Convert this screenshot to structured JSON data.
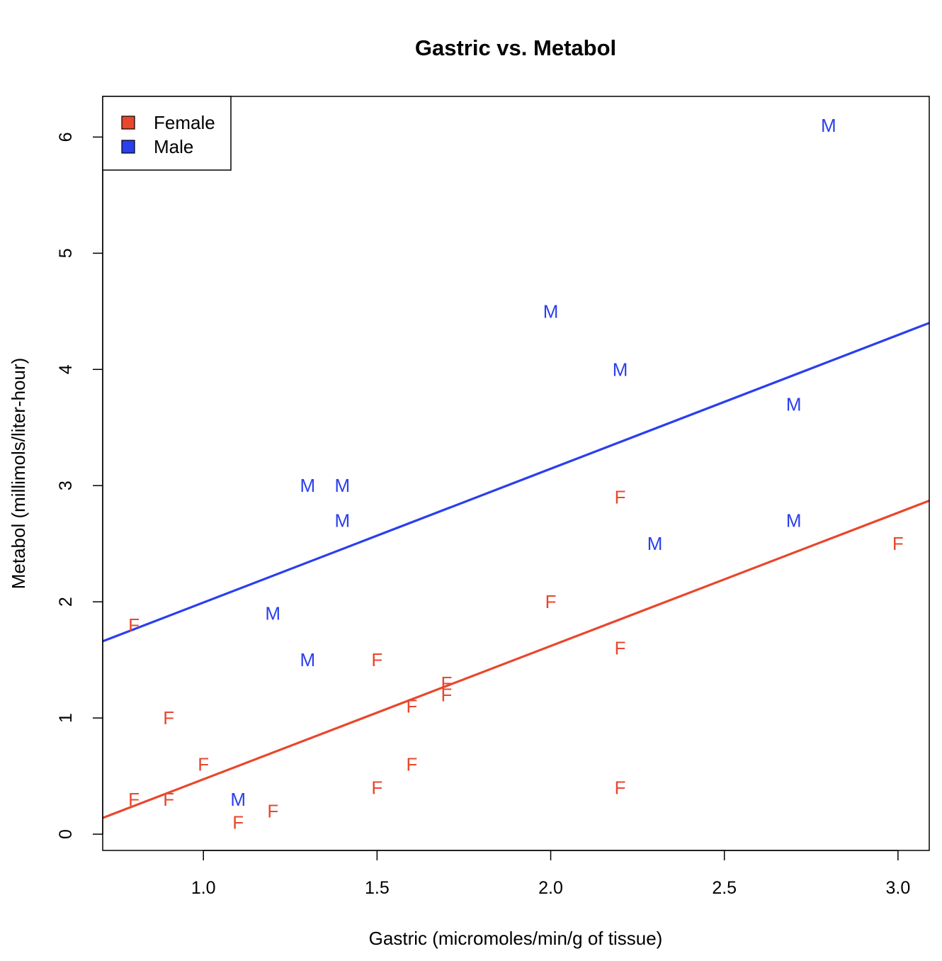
{
  "chart_data": {
    "type": "scatter",
    "title": "Gastric vs. Metabol",
    "xlabel": "Gastric (micromoles/min/g of tissue)",
    "ylabel": "Metabol (millimols/liter-hour)",
    "xlim": [
      0.71,
      3.09
    ],
    "ylim": [
      -0.14,
      6.35
    ],
    "x_ticks": [
      1.0,
      1.5,
      2.0,
      2.5,
      3.0
    ],
    "x_tick_labels": [
      "1.0",
      "1.5",
      "2.0",
      "2.5",
      "3.0"
    ],
    "y_ticks": [
      0,
      1,
      2,
      3,
      4,
      5,
      6
    ],
    "y_tick_labels": [
      "0",
      "1",
      "2",
      "3",
      "4",
      "5",
      "6"
    ],
    "grid": false,
    "legend_position": "top-left",
    "series": [
      {
        "name": "Female",
        "marker": "F",
        "color": "#e8472d",
        "points": [
          {
            "x": 0.8,
            "y": 1.8
          },
          {
            "x": 0.8,
            "y": 0.3
          },
          {
            "x": 0.9,
            "y": 1.0
          },
          {
            "x": 0.9,
            "y": 0.3
          },
          {
            "x": 1.0,
            "y": 0.6
          },
          {
            "x": 1.1,
            "y": 0.1
          },
          {
            "x": 1.2,
            "y": 0.2
          },
          {
            "x": 1.5,
            "y": 1.5
          },
          {
            "x": 1.5,
            "y": 0.4
          },
          {
            "x": 1.6,
            "y": 1.1
          },
          {
            "x": 1.6,
            "y": 0.6
          },
          {
            "x": 1.7,
            "y": 1.3
          },
          {
            "x": 1.7,
            "y": 1.2
          },
          {
            "x": 2.0,
            "y": 2.0
          },
          {
            "x": 2.2,
            "y": 2.9
          },
          {
            "x": 2.2,
            "y": 1.6
          },
          {
            "x": 2.2,
            "y": 0.4
          },
          {
            "x": 3.0,
            "y": 2.5
          }
        ],
        "fit_line": {
          "x": [
            0.71,
            3.09
          ],
          "y": [
            0.14,
            2.87
          ]
        }
      },
      {
        "name": "Male",
        "marker": "M",
        "color": "#2a3fee",
        "points": [
          {
            "x": 1.1,
            "y": 0.3
          },
          {
            "x": 1.2,
            "y": 1.9
          },
          {
            "x": 1.3,
            "y": 3.0
          },
          {
            "x": 1.3,
            "y": 1.5
          },
          {
            "x": 1.4,
            "y": 3.0
          },
          {
            "x": 1.4,
            "y": 2.7
          },
          {
            "x": 2.0,
            "y": 4.5
          },
          {
            "x": 2.2,
            "y": 4.0
          },
          {
            "x": 2.3,
            "y": 2.5
          },
          {
            "x": 2.7,
            "y": 3.7
          },
          {
            "x": 2.7,
            "y": 2.7
          },
          {
            "x": 2.8,
            "y": 6.1
          }
        ],
        "fit_line": {
          "x": [
            0.71,
            3.09
          ],
          "y": [
            1.66,
            4.4
          ]
        }
      }
    ]
  }
}
